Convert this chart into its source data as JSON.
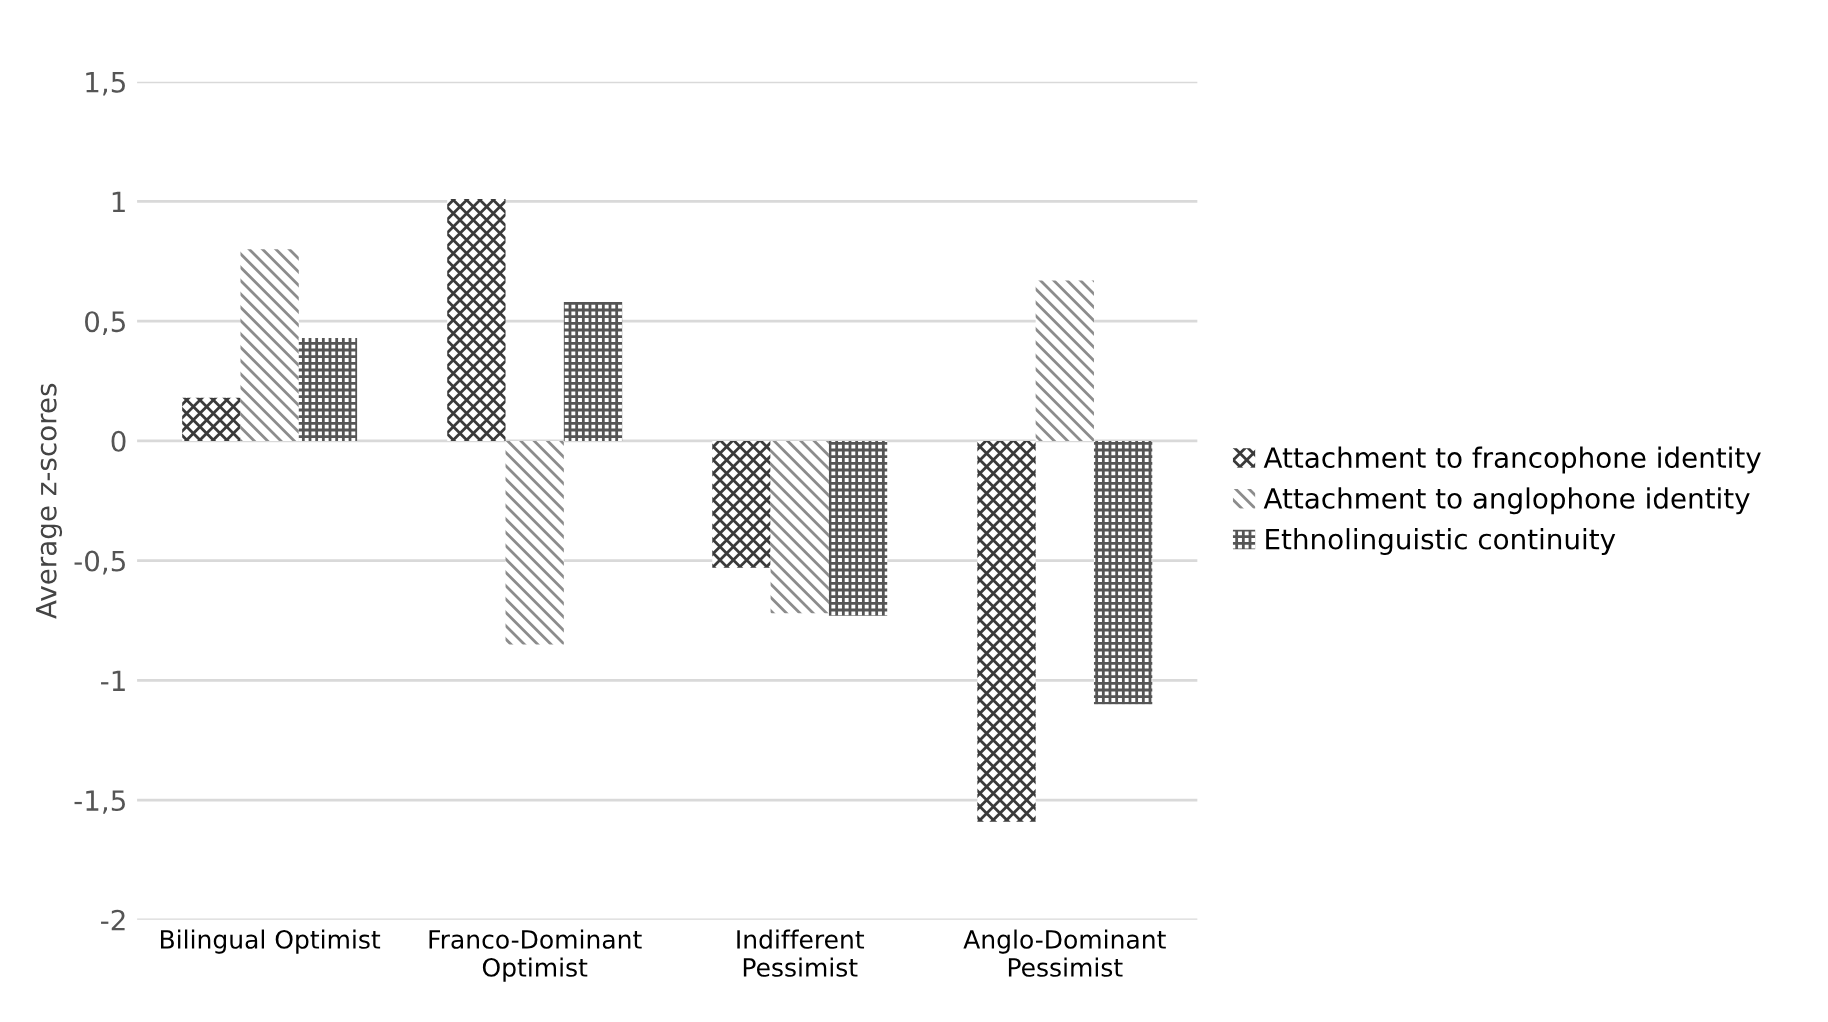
{
  "chart_data": {
    "type": "bar",
    "ylabel": "Average z-scores",
    "categories": [
      "Bilingual Optimist",
      "Franco-Dominant\nOptimist",
      "Indifferent\nPessimist",
      "Anglo-Dominant\nPessimist"
    ],
    "series": [
      {
        "name": "Attachment to francophone identity",
        "color": "#3a3a3a",
        "values": [
          0.18,
          1.01,
          -0.53,
          -1.59
        ]
      },
      {
        "name": "Attachment to anglophone identity",
        "color": "#8c8c8c",
        "values": [
          0.8,
          -0.85,
          -0.72,
          0.67
        ]
      },
      {
        "name": "Ethnolinguistic continuity",
        "color": "#555555",
        "values": [
          0.43,
          0.58,
          -0.73,
          -1.1
        ]
      }
    ],
    "ylim": [
      -2,
      1.5
    ],
    "yticks": [
      {
        "value": -2,
        "label": "-2"
      },
      {
        "value": -1.5,
        "label": "-1,5"
      },
      {
        "value": -1,
        "label": "-1"
      },
      {
        "value": -0.5,
        "label": "-0,5"
      },
      0,
      {
        "value": 0.5,
        "label": "0,5"
      },
      1,
      {
        "value": 1.5,
        "label": "1,5"
      }
    ],
    "grid": "y",
    "legend": "right"
  }
}
